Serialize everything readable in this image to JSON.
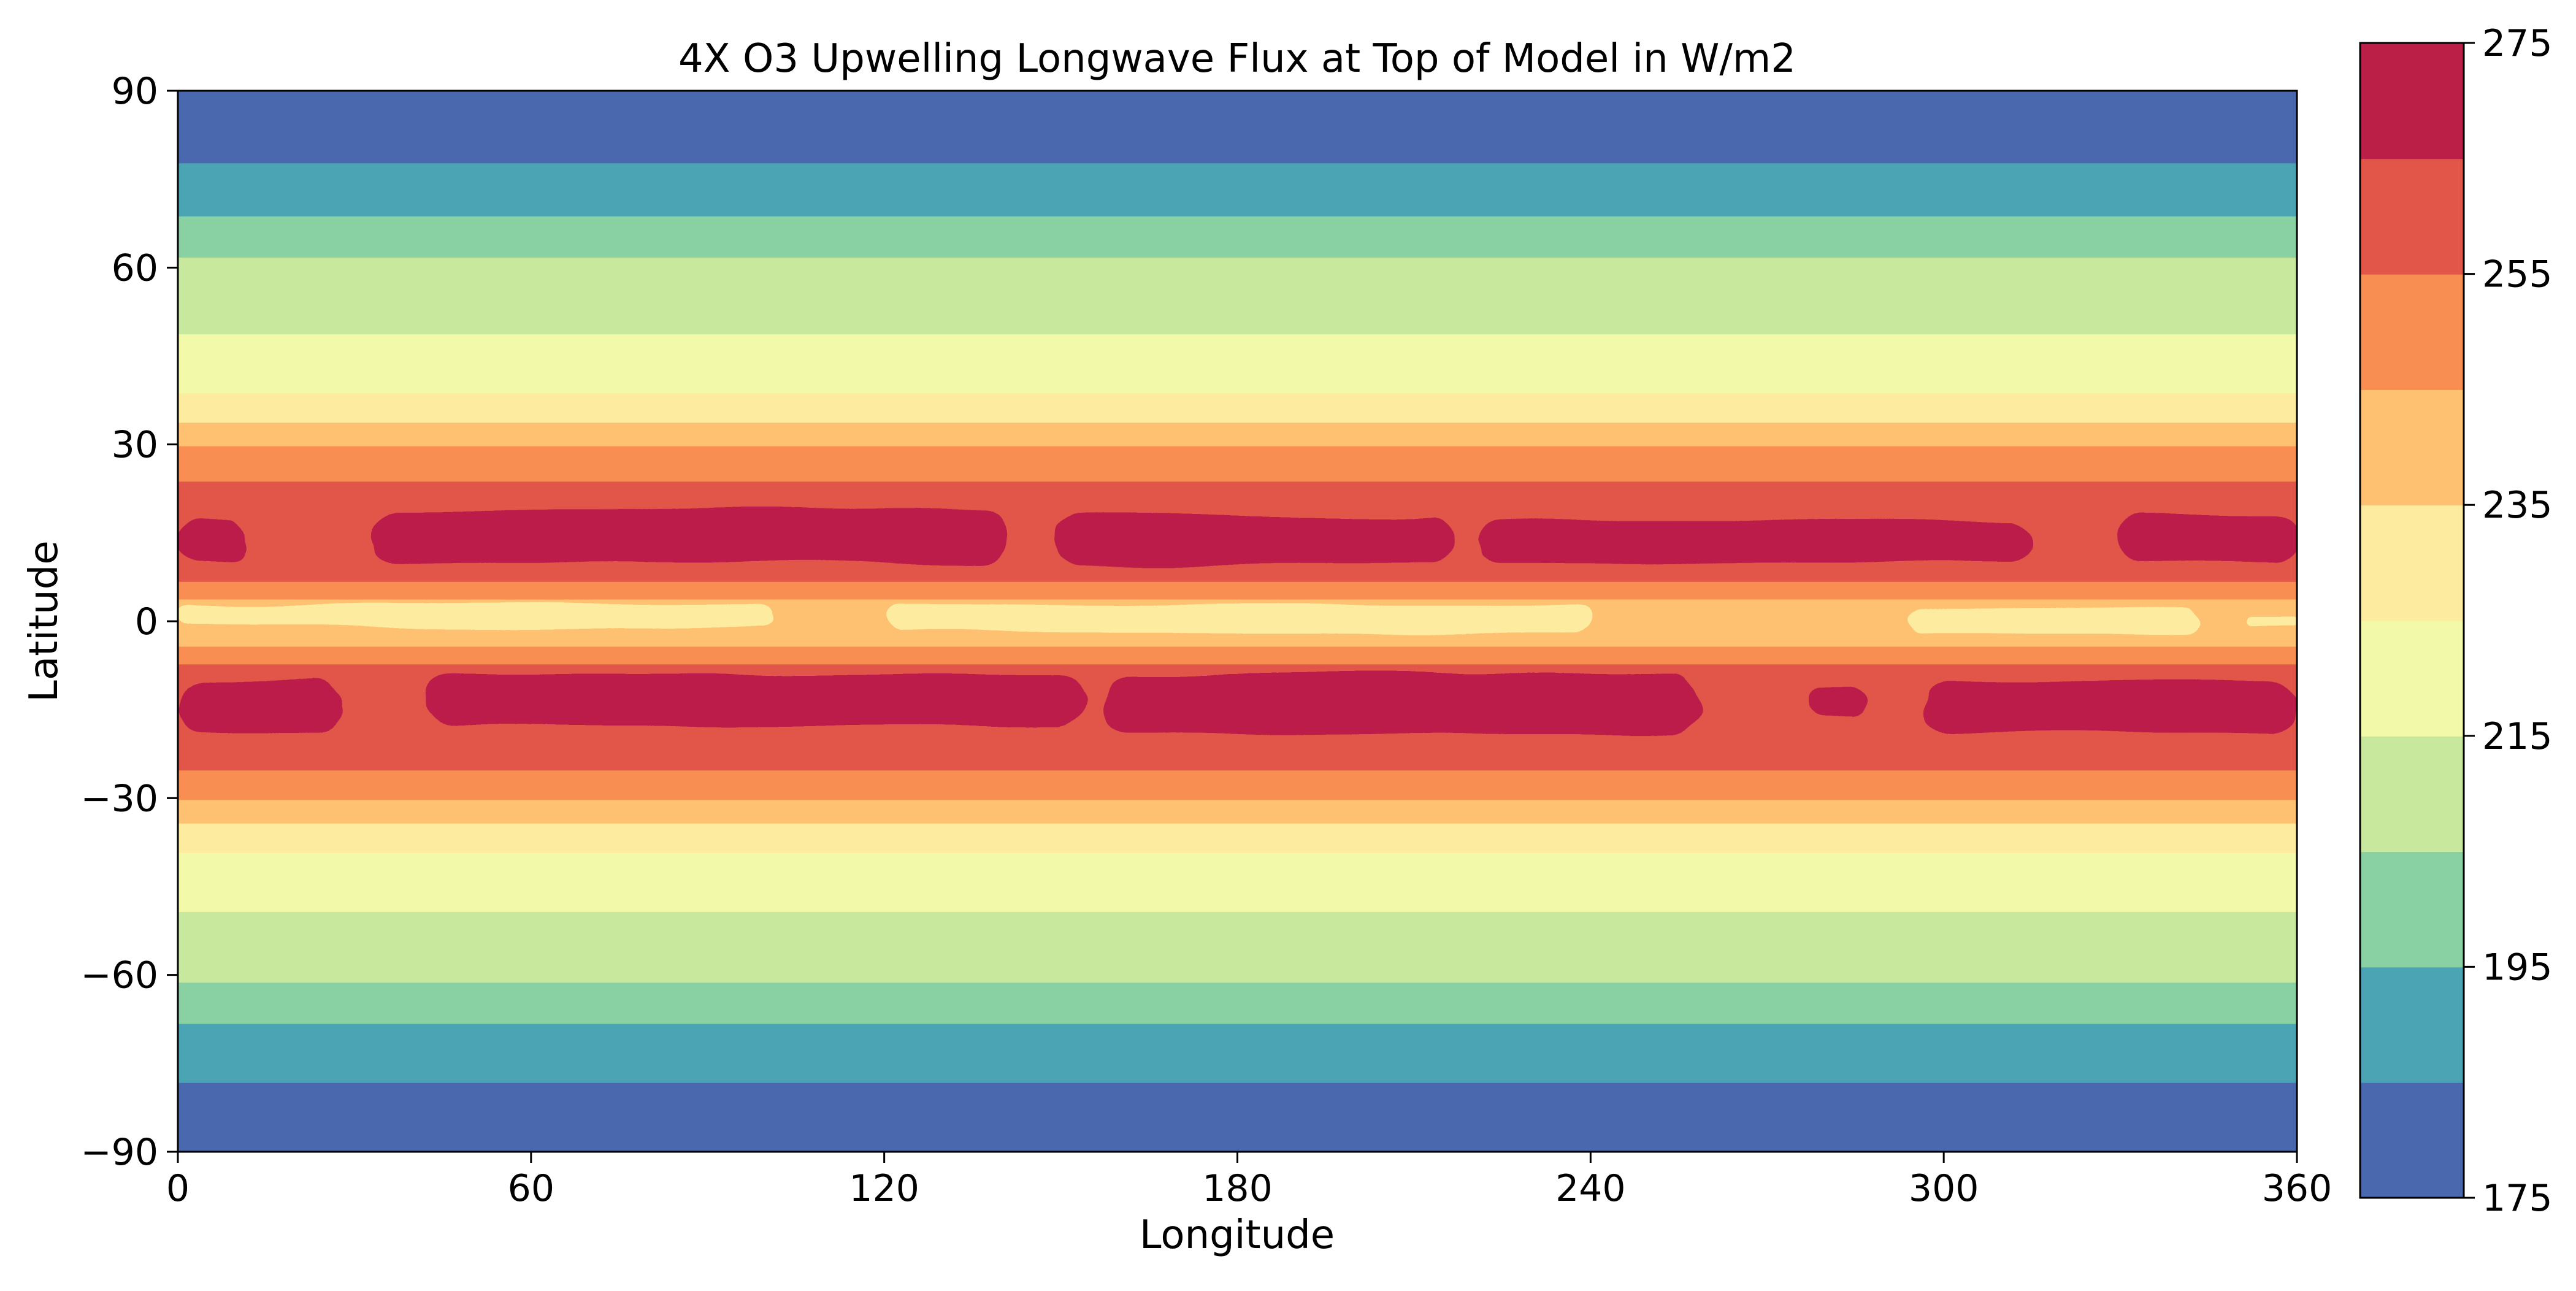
{
  "chart_data": {
    "type": "heatmap",
    "subtype": "filled-contour",
    "title": "4X O3 Upwelling Longwave Flux at Top of Model in W/m2",
    "xlabel": "Longitude",
    "ylabel": "Latitude",
    "xlim": [
      0,
      360
    ],
    "ylim": [
      -90,
      90
    ],
    "xticks": [
      0,
      60,
      120,
      180,
      240,
      300,
      360
    ],
    "yticks": [
      -90,
      -60,
      -30,
      0,
      30,
      60,
      90
    ],
    "ytick_labels": [
      "−90",
      "−60",
      "−30",
      "0",
      "30",
      "60",
      "90"
    ],
    "grid": false,
    "colorbar": {
      "position": "right",
      "levels": [
        175,
        185,
        195,
        205,
        215,
        225,
        235,
        245,
        255,
        265,
        275
      ],
      "tick_values": [
        175,
        195,
        215,
        235,
        255,
        275
      ],
      "colors": [
        "#4a68ae",
        "#4aa4b3",
        "#89d0a3",
        "#c8e89e",
        "#f2f9a9",
        "#fdec9f",
        "#fdc171",
        "#f98e52",
        "#e15649",
        "#bb1f48"
      ]
    },
    "zonal_bands": [
      {
        "lat_min": -90,
        "lat_max": -78,
        "level_index": 0
      },
      {
        "lat_min": -78,
        "lat_max": -68,
        "level_index": 1
      },
      {
        "lat_min": -68,
        "lat_max": -61,
        "level_index": 2
      },
      {
        "lat_min": -61,
        "lat_max": -49,
        "level_index": 3
      },
      {
        "lat_min": -49,
        "lat_max": -39,
        "level_index": 4
      },
      {
        "lat_min": -39,
        "lat_max": -34,
        "level_index": 5
      },
      {
        "lat_min": -34,
        "lat_max": -30,
        "level_index": 6
      },
      {
        "lat_min": -30,
        "lat_max": -25,
        "level_index": 7
      },
      {
        "lat_min": -25,
        "lat_max": -7,
        "level_index": 8
      },
      {
        "lat_min": -7,
        "lat_max": -4,
        "level_index": 7
      },
      {
        "lat_min": -4,
        "lat_max": -2,
        "level_index": 6
      },
      {
        "lat_min": -2,
        "lat_max": 4,
        "level_index": 6
      },
      {
        "lat_min": 4,
        "lat_max": 7,
        "level_index": 7
      },
      {
        "lat_min": 7,
        "lat_max": 24,
        "level_index": 8
      },
      {
        "lat_min": 24,
        "lat_max": 30,
        "level_index": 7
      },
      {
        "lat_min": 30,
        "lat_max": 34,
        "level_index": 6
      },
      {
        "lat_min": 34,
        "lat_max": 39,
        "level_index": 5
      },
      {
        "lat_min": 39,
        "lat_max": 49,
        "level_index": 4
      },
      {
        "lat_min": 49,
        "lat_max": 62,
        "level_index": 3
      },
      {
        "lat_min": 62,
        "lat_max": 69,
        "level_index": 2
      },
      {
        "lat_min": 69,
        "lat_max": 78,
        "level_index": 1
      },
      {
        "lat_min": 78,
        "lat_max": 90,
        "level_index": 0
      }
    ],
    "regions": [
      {
        "level_index": 9,
        "lon_min": 0,
        "lon_max": 12,
        "lat_min": 10,
        "lat_max": 17
      },
      {
        "level_index": 9,
        "lon_min": 33,
        "lon_max": 141,
        "lat_min": 10,
        "lat_max": 19
      },
      {
        "level_index": 9,
        "lon_min": 149,
        "lon_max": 217,
        "lat_min": 10,
        "lat_max": 18
      },
      {
        "level_index": 9,
        "lon_min": 221,
        "lon_max": 315,
        "lat_min": 10,
        "lat_max": 17
      },
      {
        "level_index": 9,
        "lon_min": 330,
        "lon_max": 360,
        "lat_min": 10,
        "lat_max": 18
      },
      {
        "level_index": 9,
        "lon_min": 0,
        "lon_max": 28,
        "lat_min": -19,
        "lat_max": -10
      },
      {
        "level_index": 9,
        "lon_min": 42,
        "lon_max": 154,
        "lat_min": -18,
        "lat_max": -9
      },
      {
        "level_index": 9,
        "lon_min": 157,
        "lon_max": 259,
        "lat_min": -19,
        "lat_max": -9
      },
      {
        "level_index": 9,
        "lon_min": 277,
        "lon_max": 287,
        "lat_min": -16,
        "lat_max": -11
      },
      {
        "level_index": 9,
        "lon_min": 297,
        "lon_max": 360,
        "lat_min": -19,
        "lat_max": -10
      },
      {
        "level_index": 5,
        "lon_min": 0,
        "lon_max": 101,
        "lat_min": -1,
        "lat_max": 3
      },
      {
        "level_index": 5,
        "lon_min": 120,
        "lon_max": 240,
        "lat_min": -2,
        "lat_max": 3
      },
      {
        "level_index": 5,
        "lon_min": 294,
        "lon_max": 343,
        "lat_min": -2,
        "lat_max": 2
      },
      {
        "level_index": 5,
        "lon_min": 351,
        "lon_max": 360,
        "lat_min": -1,
        "lat_max": 1
      }
    ]
  }
}
